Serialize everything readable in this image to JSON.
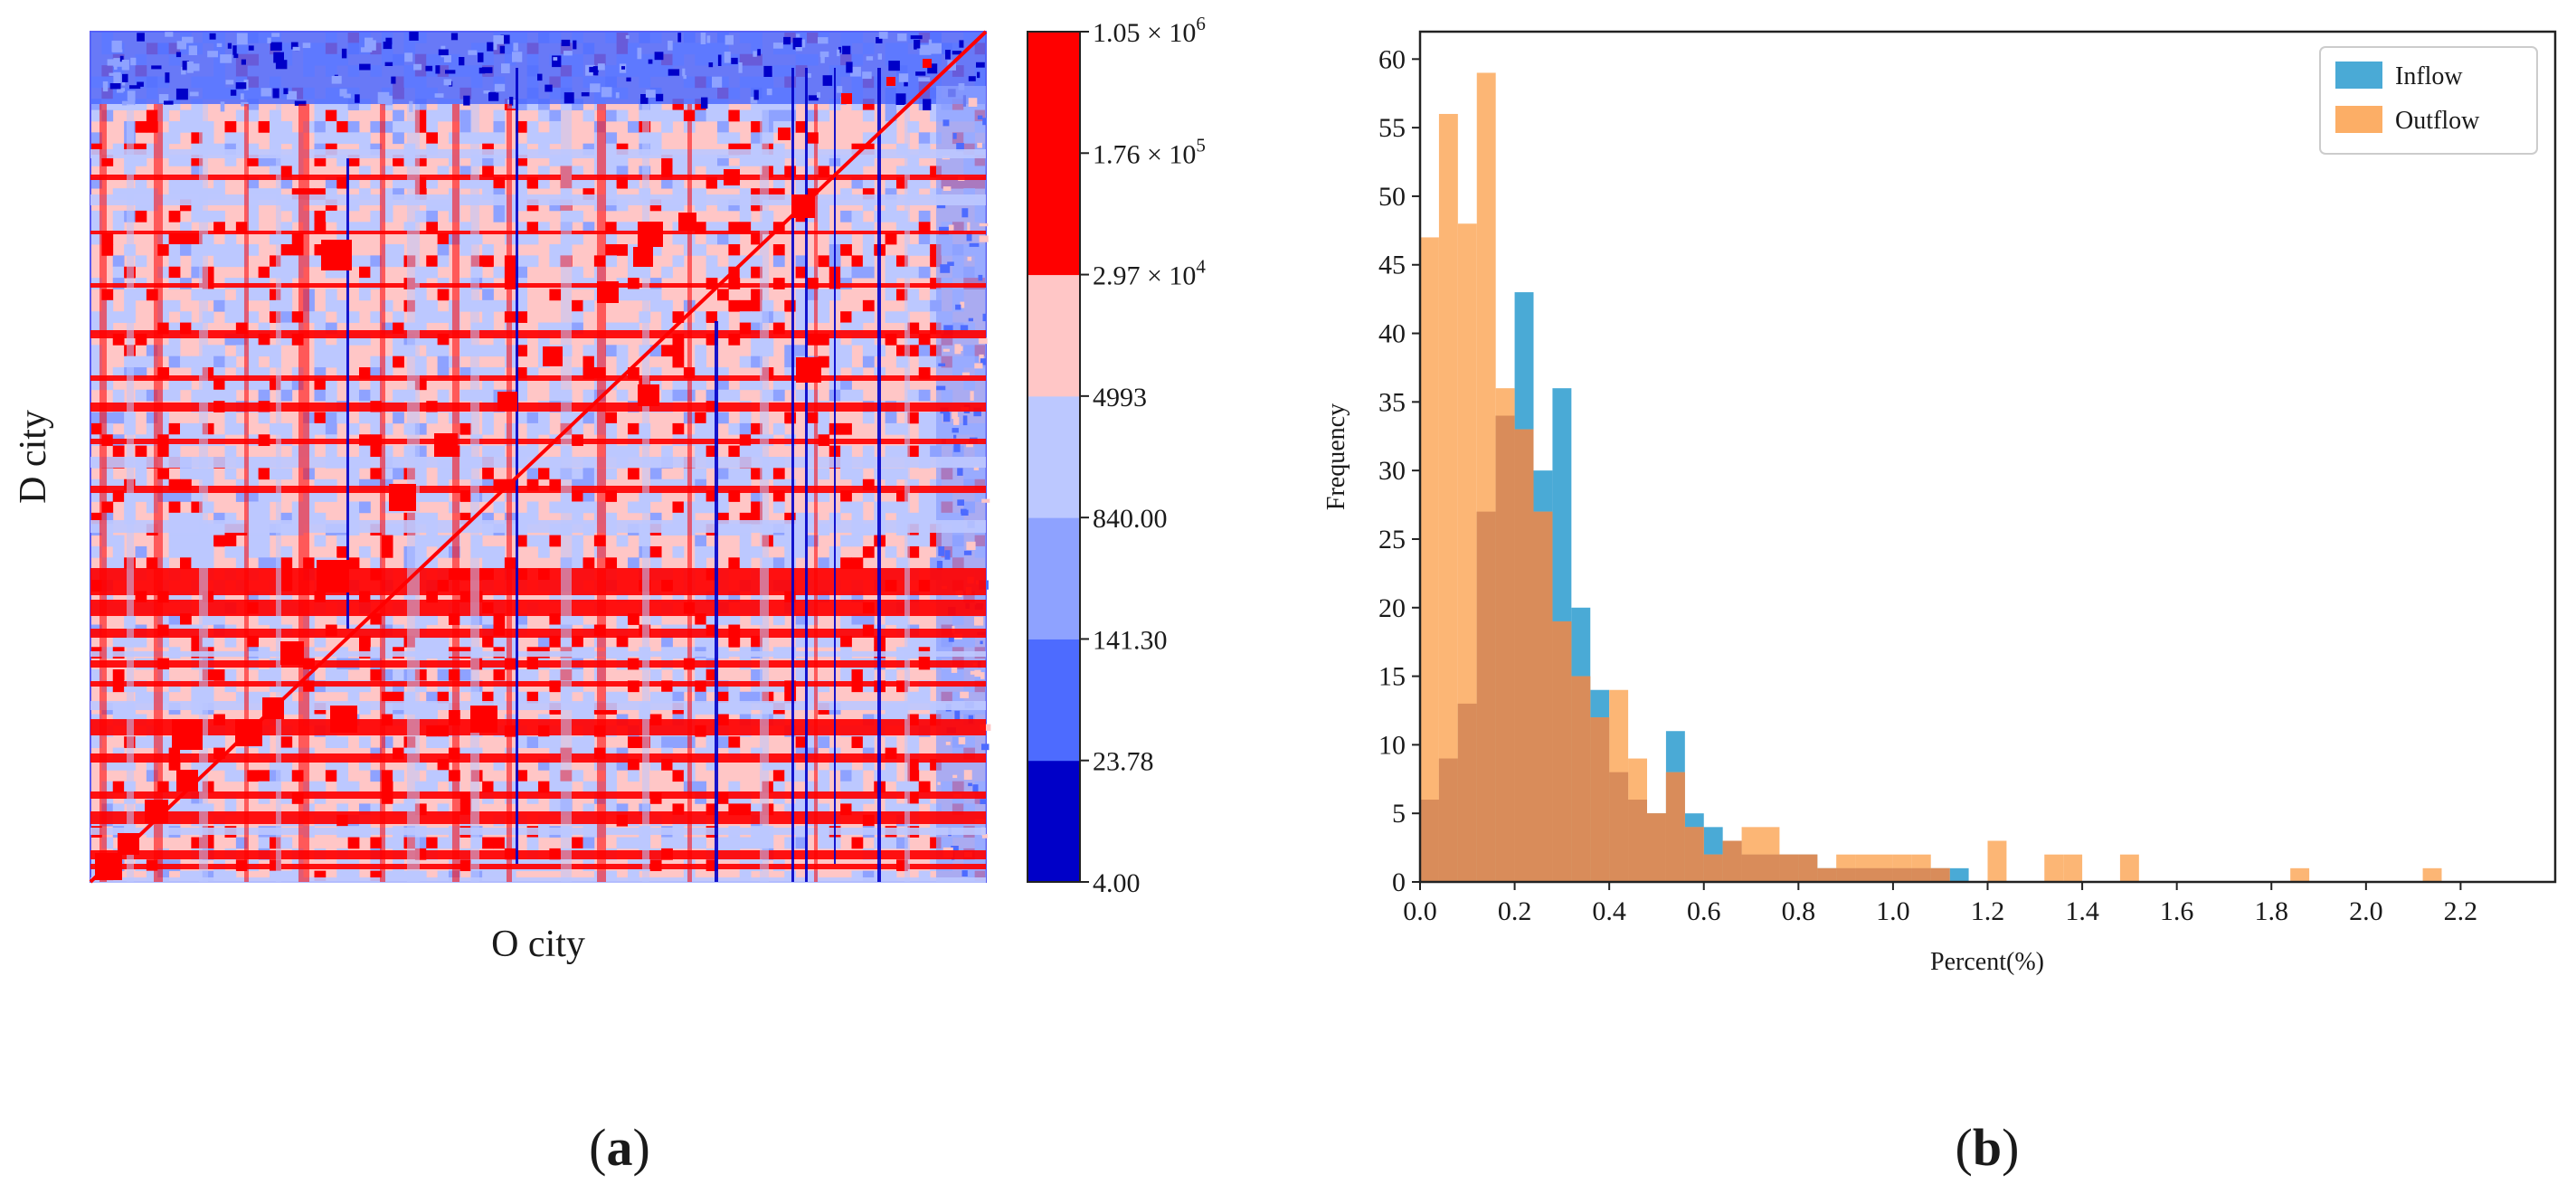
{
  "panels": {
    "a": {
      "label_open": "(",
      "letter": "a",
      "label_close": ")"
    },
    "b": {
      "label_open": "(",
      "letter": "b",
      "label_close": ")"
    }
  },
  "colors": {
    "heat_dark_blue": "#0000c8",
    "heat_blue": "#4d6bff",
    "heat_light_blue": "#8ea2ff",
    "heat_pale_blue": "#bcc8ff",
    "heat_pink": "#ffc6c6",
    "heat_red": "#ff0000",
    "inflow": "#4aaad6",
    "outflow": "#fcae66",
    "overlap": "#d98c5a"
  },
  "chart_data": [
    {
      "type": "heatmap",
      "title": "",
      "xlabel": "O city",
      "ylabel": "D city",
      "x_ticks": [],
      "y_ticks": [],
      "colorbar": {
        "scale": "log",
        "tick_labels": [
          "1.05 × 10^6",
          "1.76 × 10^5",
          "2.97 × 10^4",
          "4993",
          "840.00",
          "141.30",
          "23.78",
          "4.00"
        ],
        "boundaries": [
          4.0,
          23.78,
          141.3,
          840.0,
          4993,
          29700,
          176000,
          1050000
        ],
        "colors": [
          "#0000c8",
          "#4d6bff",
          "#8ea2ff",
          "#bcc8ff",
          "#ffc6c6",
          "#ff0000",
          "#ff0000"
        ]
      }
    },
    {
      "type": "bar",
      "subtype": "overlaid-histogram",
      "title": "",
      "xlabel": "Percent(%)",
      "ylabel": "Frequency",
      "xlim": [
        0.0,
        2.4
      ],
      "ylim": [
        0,
        62
      ],
      "x_ticks": [
        "0.0",
        "0.2",
        "0.4",
        "0.6",
        "0.8",
        "1.0",
        "1.2",
        "1.4",
        "1.6",
        "1.8",
        "2.0",
        "2.2"
      ],
      "y_ticks": [
        "0",
        "5",
        "10",
        "15",
        "20",
        "25",
        "30",
        "35",
        "40",
        "45",
        "50",
        "55",
        "60"
      ],
      "legend": {
        "position": "top-right",
        "entries": [
          "Inflow",
          "Outflow"
        ]
      },
      "bin_width": 0.04,
      "series": [
        {
          "name": "Inflow",
          "bin_starts": [
            0.0,
            0.04,
            0.08,
            0.12,
            0.16,
            0.2,
            0.24,
            0.28,
            0.32,
            0.36,
            0.4,
            0.44,
            0.48,
            0.52,
            0.56,
            0.6,
            0.64,
            0.68,
            0.72,
            0.76,
            0.8,
            0.84,
            0.88,
            0.92,
            0.96,
            1.0,
            1.04,
            1.08,
            1.12
          ],
          "values": [
            6,
            9,
            13,
            27,
            34,
            43,
            30,
            36,
            20,
            14,
            8,
            6,
            5,
            11,
            5,
            4,
            3,
            2,
            2,
            2,
            2,
            1,
            1,
            1,
            1,
            1,
            1,
            1,
            1
          ]
        },
        {
          "name": "Outflow",
          "bin_starts": [
            0.0,
            0.04,
            0.08,
            0.12,
            0.16,
            0.2,
            0.24,
            0.28,
            0.32,
            0.36,
            0.4,
            0.44,
            0.48,
            0.52,
            0.56,
            0.6,
            0.64,
            0.68,
            0.72,
            0.76,
            0.8,
            0.84,
            0.88,
            0.92,
            0.96,
            1.0,
            1.04,
            1.08,
            1.2,
            1.32,
            1.36,
            1.48,
            1.84,
            2.12
          ],
          "values": [
            47,
            56,
            48,
            59,
            36,
            33,
            27,
            19,
            15,
            12,
            14,
            9,
            5,
            8,
            4,
            2,
            3,
            4,
            4,
            2,
            2,
            1,
            2,
            2,
            2,
            2,
            2,
            1,
            3,
            2,
            2,
            2,
            1,
            1
          ]
        }
      ]
    }
  ]
}
